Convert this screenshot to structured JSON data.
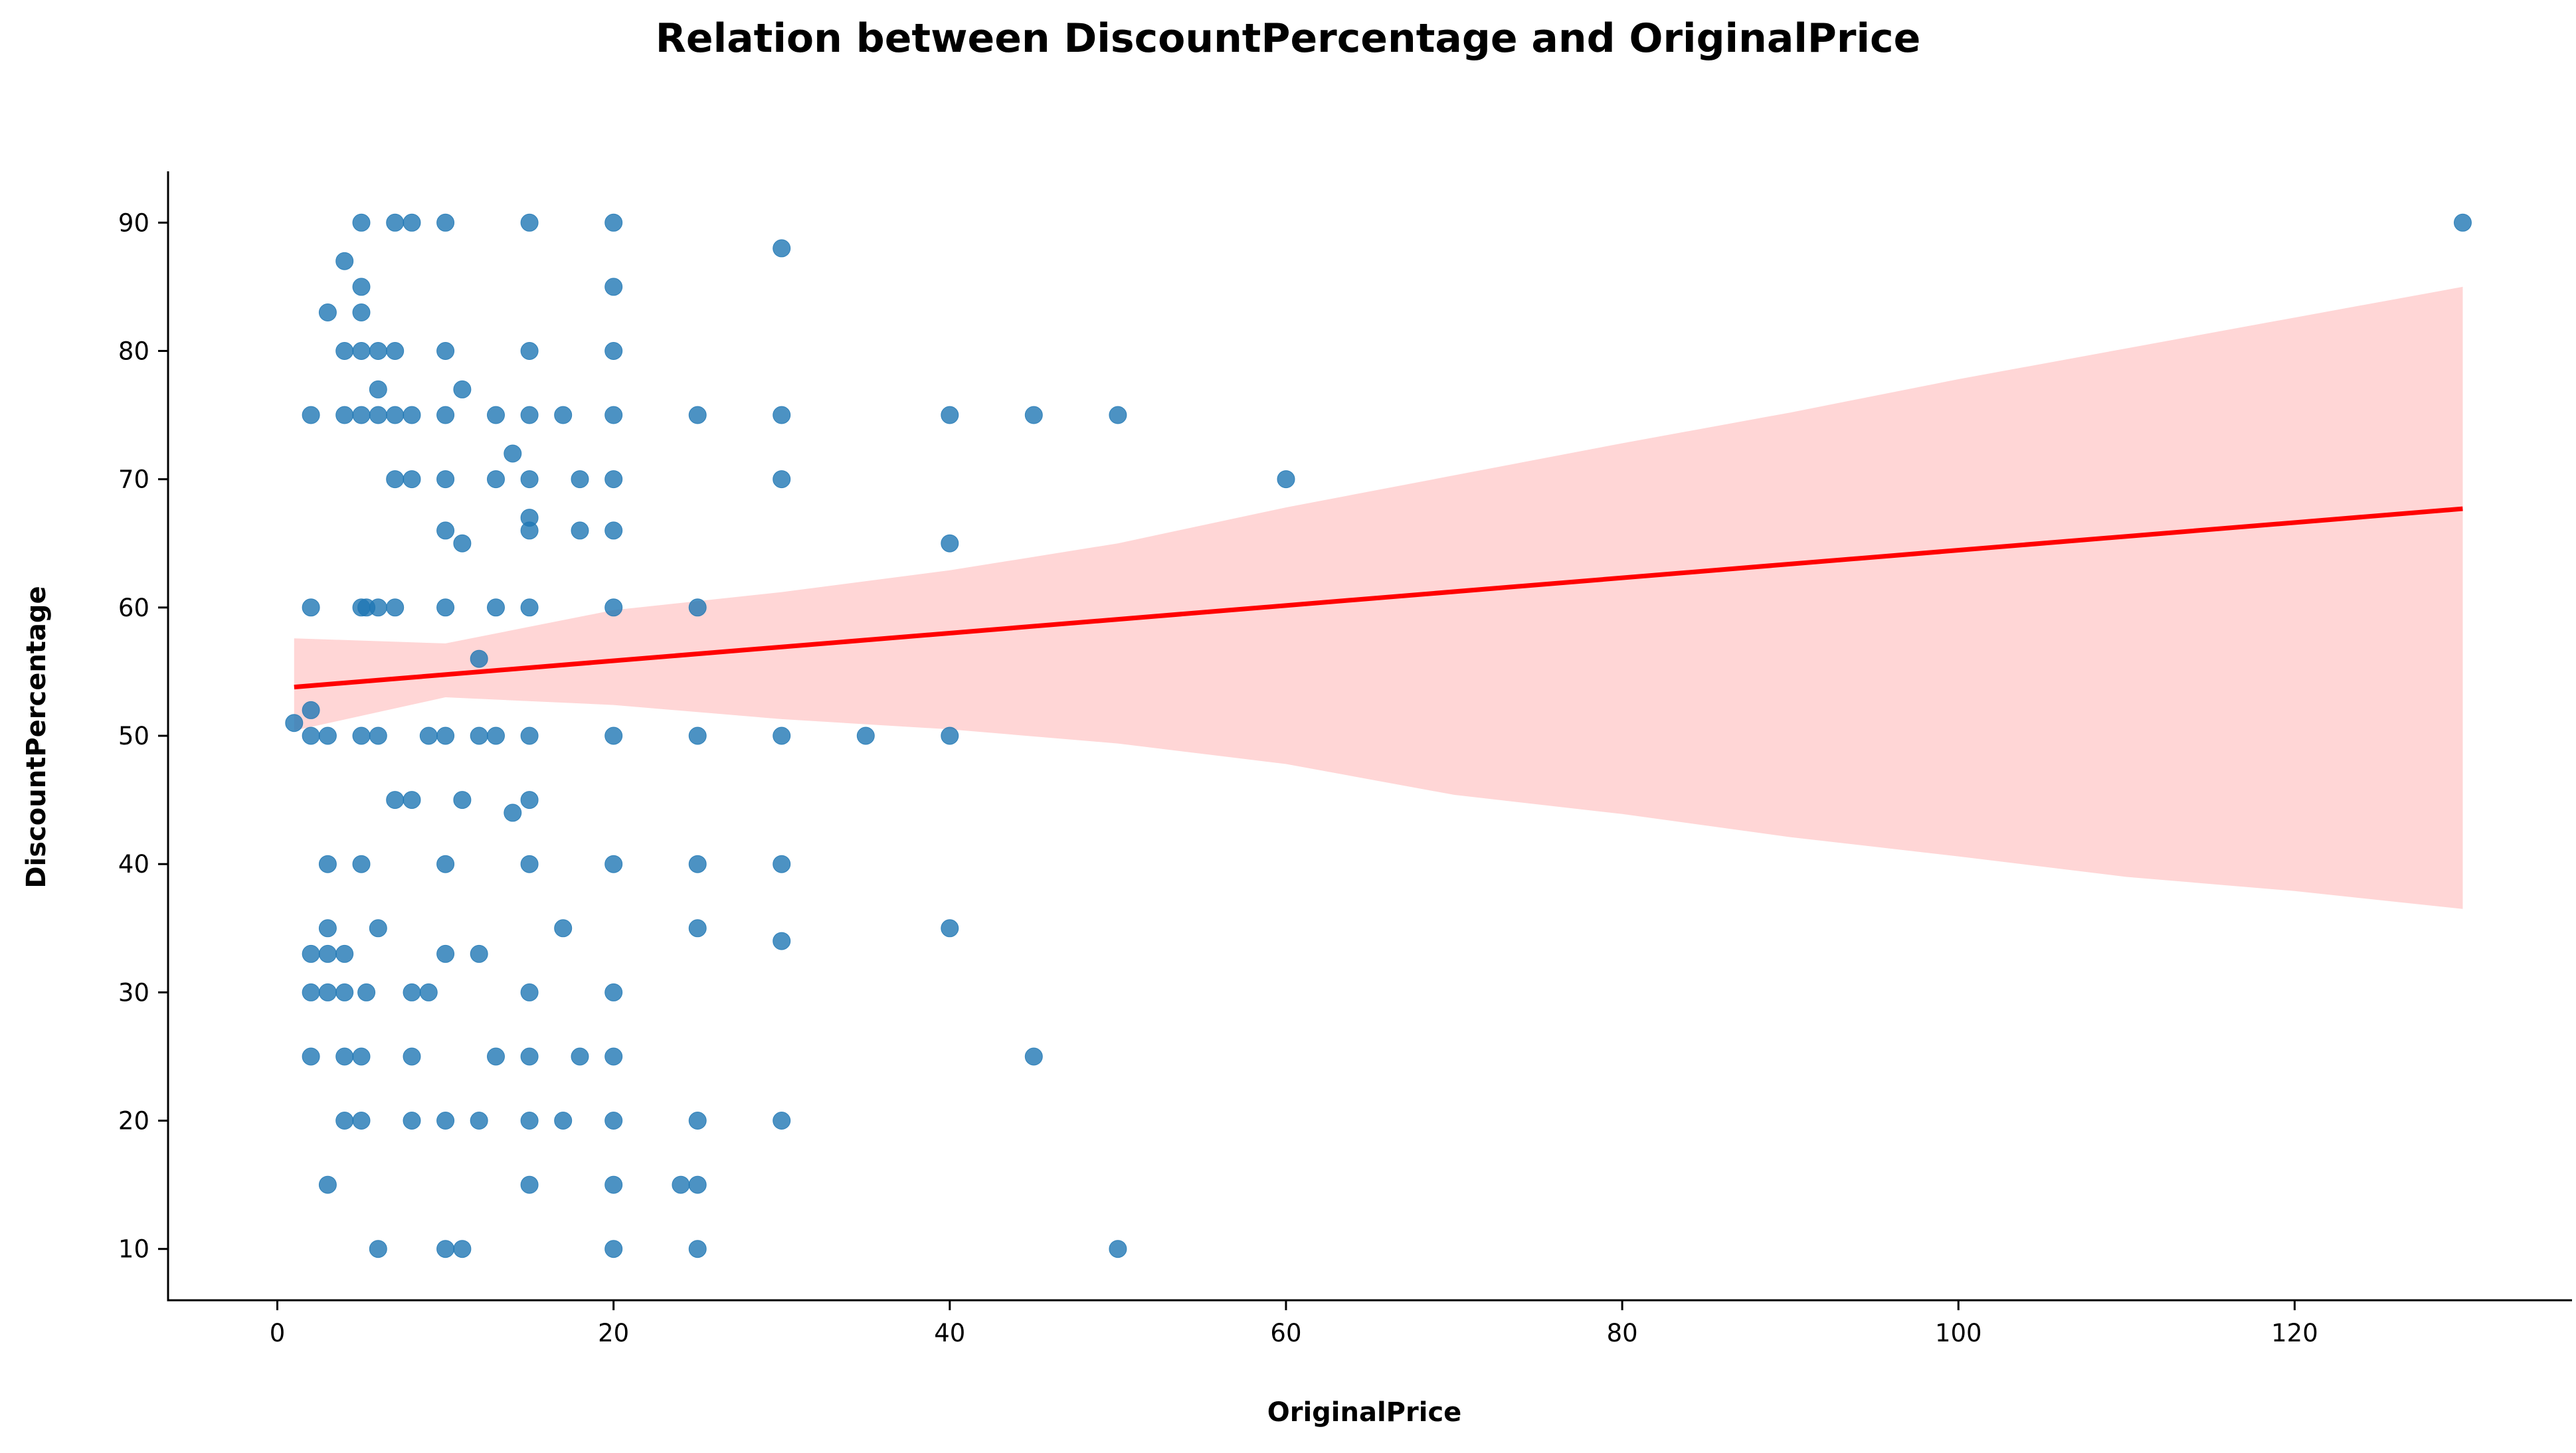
{
  "chart_data": {
    "type": "scatter",
    "title": "Relation between DiscountPercentage and OriginalPrice",
    "xlabel": "OriginalPrice",
    "ylabel": "DiscountPercentage",
    "xlim": [
      -6.5,
      136.5
    ],
    "ylim": [
      6,
      94
    ],
    "xticks": [
      0,
      20,
      40,
      60,
      80,
      100,
      120
    ],
    "yticks": [
      10,
      20,
      30,
      40,
      50,
      60,
      70,
      80,
      90
    ],
    "grid": false,
    "colors": {
      "points": "#1f77b4",
      "regression_line": "#ff0000",
      "confidence_band": "#ffd6d6"
    },
    "regression_line": {
      "x": [
        1,
        130
      ],
      "y": [
        53.8,
        67.7
      ]
    },
    "confidence_band": {
      "x": [
        1,
        10,
        20,
        30,
        40,
        50,
        60,
        70,
        80,
        90,
        100,
        110,
        120,
        130
      ],
      "upper": [
        57.6,
        57.2,
        59.8,
        61.2,
        62.9,
        65.0,
        67.8,
        70.3,
        72.8,
        75.2,
        77.8,
        80.2,
        82.6,
        85.0
      ],
      "lower": [
        50.4,
        53.0,
        52.4,
        51.3,
        50.5,
        49.4,
        47.8,
        45.4,
        43.9,
        42.1,
        40.6,
        39.0,
        37.9,
        36.5
      ]
    },
    "points": [
      {
        "x": 1,
        "y": 51
      },
      {
        "x": 2,
        "y": 52
      },
      {
        "x": 2,
        "y": 50
      },
      {
        "x": 2,
        "y": 75
      },
      {
        "x": 2,
        "y": 60
      },
      {
        "x": 2,
        "y": 33
      },
      {
        "x": 2,
        "y": 30
      },
      {
        "x": 2,
        "y": 25
      },
      {
        "x": 3,
        "y": 83
      },
      {
        "x": 3,
        "y": 50
      },
      {
        "x": 3,
        "y": 40
      },
      {
        "x": 3,
        "y": 35
      },
      {
        "x": 3,
        "y": 33
      },
      {
        "x": 3,
        "y": 30
      },
      {
        "x": 3,
        "y": 15
      },
      {
        "x": 4,
        "y": 87
      },
      {
        "x": 4,
        "y": 80
      },
      {
        "x": 4,
        "y": 75
      },
      {
        "x": 4,
        "y": 33
      },
      {
        "x": 4,
        "y": 30
      },
      {
        "x": 4,
        "y": 25
      },
      {
        "x": 4,
        "y": 20
      },
      {
        "x": 5,
        "y": 90
      },
      {
        "x": 5,
        "y": 85
      },
      {
        "x": 5,
        "y": 83
      },
      {
        "x": 5,
        "y": 80
      },
      {
        "x": 5,
        "y": 75
      },
      {
        "x": 5,
        "y": 60
      },
      {
        "x": 5,
        "y": 50
      },
      {
        "x": 5,
        "y": 40
      },
      {
        "x": 5,
        "y": 25
      },
      {
        "x": 5,
        "y": 20
      },
      {
        "x": 5.3,
        "y": 60
      },
      {
        "x": 5.3,
        "y": 30
      },
      {
        "x": 6,
        "y": 80
      },
      {
        "x": 6,
        "y": 77
      },
      {
        "x": 6,
        "y": 75
      },
      {
        "x": 6,
        "y": 60
      },
      {
        "x": 6,
        "y": 50
      },
      {
        "x": 6,
        "y": 35
      },
      {
        "x": 6,
        "y": 10
      },
      {
        "x": 7,
        "y": 90
      },
      {
        "x": 7,
        "y": 80
      },
      {
        "x": 7,
        "y": 75
      },
      {
        "x": 7,
        "y": 70
      },
      {
        "x": 7,
        "y": 60
      },
      {
        "x": 7,
        "y": 45
      },
      {
        "x": 8,
        "y": 90
      },
      {
        "x": 8,
        "y": 75
      },
      {
        "x": 8,
        "y": 70
      },
      {
        "x": 8,
        "y": 45
      },
      {
        "x": 8,
        "y": 30
      },
      {
        "x": 8,
        "y": 25
      },
      {
        "x": 8,
        "y": 20
      },
      {
        "x": 9,
        "y": 50
      },
      {
        "x": 9,
        "y": 30
      },
      {
        "x": 10,
        "y": 90
      },
      {
        "x": 10,
        "y": 80
      },
      {
        "x": 10,
        "y": 75
      },
      {
        "x": 10,
        "y": 70
      },
      {
        "x": 10,
        "y": 66
      },
      {
        "x": 10,
        "y": 60
      },
      {
        "x": 10,
        "y": 50
      },
      {
        "x": 10,
        "y": 40
      },
      {
        "x": 10,
        "y": 33
      },
      {
        "x": 10,
        "y": 20
      },
      {
        "x": 10,
        "y": 10
      },
      {
        "x": 11,
        "y": 77
      },
      {
        "x": 11,
        "y": 65
      },
      {
        "x": 11,
        "y": 45
      },
      {
        "x": 11,
        "y": 10
      },
      {
        "x": 12,
        "y": 56
      },
      {
        "x": 12,
        "y": 50
      },
      {
        "x": 12,
        "y": 33
      },
      {
        "x": 12,
        "y": 20
      },
      {
        "x": 13,
        "y": 75
      },
      {
        "x": 13,
        "y": 70
      },
      {
        "x": 13,
        "y": 60
      },
      {
        "x": 13,
        "y": 50
      },
      {
        "x": 13,
        "y": 25
      },
      {
        "x": 14,
        "y": 72
      },
      {
        "x": 14,
        "y": 44
      },
      {
        "x": 15,
        "y": 90
      },
      {
        "x": 15,
        "y": 80
      },
      {
        "x": 15,
        "y": 75
      },
      {
        "x": 15,
        "y": 70
      },
      {
        "x": 15,
        "y": 67
      },
      {
        "x": 15,
        "y": 66
      },
      {
        "x": 15,
        "y": 60
      },
      {
        "x": 15,
        "y": 50
      },
      {
        "x": 15,
        "y": 45
      },
      {
        "x": 15,
        "y": 40
      },
      {
        "x": 15,
        "y": 30
      },
      {
        "x": 15,
        "y": 25
      },
      {
        "x": 15,
        "y": 20
      },
      {
        "x": 15,
        "y": 15
      },
      {
        "x": 17,
        "y": 75
      },
      {
        "x": 17,
        "y": 35
      },
      {
        "x": 17,
        "y": 20
      },
      {
        "x": 18,
        "y": 70
      },
      {
        "x": 18,
        "y": 66
      },
      {
        "x": 18,
        "y": 25
      },
      {
        "x": 20,
        "y": 90
      },
      {
        "x": 20,
        "y": 85
      },
      {
        "x": 20,
        "y": 80
      },
      {
        "x": 20,
        "y": 75
      },
      {
        "x": 20,
        "y": 70
      },
      {
        "x": 20,
        "y": 66
      },
      {
        "x": 20,
        "y": 60
      },
      {
        "x": 20,
        "y": 50
      },
      {
        "x": 20,
        "y": 40
      },
      {
        "x": 20,
        "y": 30
      },
      {
        "x": 20,
        "y": 25
      },
      {
        "x": 20,
        "y": 20
      },
      {
        "x": 20,
        "y": 15
      },
      {
        "x": 20,
        "y": 10
      },
      {
        "x": 24,
        "y": 15
      },
      {
        "x": 25,
        "y": 75
      },
      {
        "x": 25,
        "y": 60
      },
      {
        "x": 25,
        "y": 50
      },
      {
        "x": 25,
        "y": 40
      },
      {
        "x": 25,
        "y": 35
      },
      {
        "x": 25,
        "y": 20
      },
      {
        "x": 25,
        "y": 15
      },
      {
        "x": 25,
        "y": 10
      },
      {
        "x": 30,
        "y": 88
      },
      {
        "x": 30,
        "y": 75
      },
      {
        "x": 30,
        "y": 70
      },
      {
        "x": 30,
        "y": 50
      },
      {
        "x": 30,
        "y": 40
      },
      {
        "x": 30,
        "y": 34
      },
      {
        "x": 30,
        "y": 20
      },
      {
        "x": 35,
        "y": 50
      },
      {
        "x": 40,
        "y": 75
      },
      {
        "x": 40,
        "y": 65
      },
      {
        "x": 40,
        "y": 50
      },
      {
        "x": 40,
        "y": 35
      },
      {
        "x": 45,
        "y": 75
      },
      {
        "x": 45,
        "y": 25
      },
      {
        "x": 50,
        "y": 75
      },
      {
        "x": 50,
        "y": 10
      },
      {
        "x": 60,
        "y": 70
      },
      {
        "x": 130,
        "y": 90
      }
    ]
  }
}
